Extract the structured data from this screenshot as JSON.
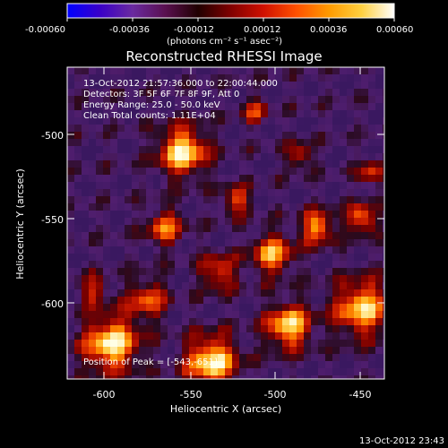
{
  "colorbar": {
    "ticks": [
      "-0.00060",
      "-0.00036",
      "-0.00012",
      "0.00012",
      "0.00036",
      "0.00060"
    ],
    "units": "(photons cm⁻² s⁻¹ asec⁻²)",
    "gradient": [
      "#0000ff",
      "#3a00c8",
      "#6a2aa0",
      "#5a1050",
      "#200000",
      "#800000",
      "#d01000",
      "#ff5000",
      "#ff9a00",
      "#ffd040",
      "#ffffff"
    ]
  },
  "plot": {
    "title": "Reconstructed RHESSI Image",
    "x_label": "Heliocentric X (arcsec)",
    "y_label": "Heliocentric Y (arcsec)",
    "x_ticks": [
      "-600",
      "-550",
      "-500",
      "-450"
    ],
    "y_ticks": [
      "-500",
      "-550",
      "-600"
    ],
    "info_lines": [
      "13-Oct-2012 21:57:36.000 to 22:00:44.000",
      "Detectors: 3F 5F 6F 7F 8F 9F, Att 0",
      "Energy Range: 25.0 - 50.0 keV",
      "Clean      Total counts: 1.11E+04"
    ],
    "peak_label": "Position of Peak = [-543,-651]"
  },
  "footer": {
    "timestamp": "13-Oct-2012 23:43"
  }
}
